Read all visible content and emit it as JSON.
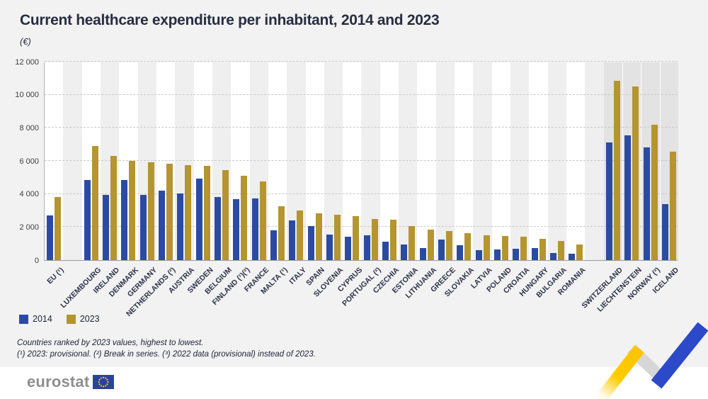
{
  "title": "Current healthcare expenditure per inhabitant, 2014 and 2023",
  "subtitle": "(€)",
  "legend": {
    "items": [
      {
        "label": "2014",
        "color": "#2b4ba3"
      },
      {
        "label": "2023",
        "color": "#b5952f"
      }
    ]
  },
  "footnotes": [
    "Countries ranked by 2023 values, highest to lowest.",
    "(¹) 2023: provisional. (²) Break in series. (³) 2022 data (provisional) instead of 2023."
  ],
  "logo": {
    "text": "eurostat"
  },
  "chart_data": {
    "type": "bar",
    "title": "Current healthcare expenditure per inhabitant, 2014 and 2023",
    "xlabel": "",
    "ylabel": "(€)",
    "ylim": [
      0,
      12000
    ],
    "ytick_step": 2000,
    "ytick_labels": [
      "0",
      "2 000",
      "4 000",
      "6 000",
      "8 000",
      "10 000",
      "12 000"
    ],
    "grid": "horizontal-dashed",
    "legend_position": "bottom-left",
    "layout_note": "gap after EU aggregate; EFTA group separated by gap and shaded darker",
    "categories": [
      {
        "label": "EU (¹)",
        "group": "eu-aggregate"
      },
      {
        "label": "LUXEMBOURG",
        "group": "eu"
      },
      {
        "label": "IRELAND",
        "group": "eu"
      },
      {
        "label": "DENMARK",
        "group": "eu"
      },
      {
        "label": "GERMANY",
        "group": "eu"
      },
      {
        "label": "NETHERLANDS (²)",
        "group": "eu"
      },
      {
        "label": "AUSTRIA",
        "group": "eu"
      },
      {
        "label": "SWEDEN",
        "group": "eu"
      },
      {
        "label": "BELGIUM",
        "group": "eu"
      },
      {
        "label": "FINLAND (¹)(²)",
        "group": "eu"
      },
      {
        "label": "FRANCE",
        "group": "eu"
      },
      {
        "label": "MALTA (¹)",
        "group": "eu"
      },
      {
        "label": "ITALY",
        "group": "eu"
      },
      {
        "label": "SPAIN",
        "group": "eu"
      },
      {
        "label": "SLOVENIA",
        "group": "eu"
      },
      {
        "label": "CYPRUS",
        "group": "eu"
      },
      {
        "label": "PORTUGAL (²)",
        "group": "eu"
      },
      {
        "label": "CZECHIA",
        "group": "eu"
      },
      {
        "label": "ESTONIA",
        "group": "eu"
      },
      {
        "label": "LITHUANIA",
        "group": "eu"
      },
      {
        "label": "GREECE",
        "group": "eu"
      },
      {
        "label": "SLOVAKIA",
        "group": "eu"
      },
      {
        "label": "LATVIA",
        "group": "eu"
      },
      {
        "label": "POLAND",
        "group": "eu"
      },
      {
        "label": "CROATIA",
        "group": "eu"
      },
      {
        "label": "HUNGARY",
        "group": "eu"
      },
      {
        "label": "BULGARIA",
        "group": "eu"
      },
      {
        "label": "ROMANIA",
        "group": "eu"
      },
      {
        "label": "SWITZERLAND",
        "group": "efta"
      },
      {
        "label": "LIECHTENSTEIN",
        "group": "efta"
      },
      {
        "label": "NORWAY (³)",
        "group": "efta"
      },
      {
        "label": "ICELAND",
        "group": "efta"
      }
    ],
    "series": [
      {
        "name": "2014",
        "color": "#2b4ba3",
        "values": [
          2700,
          4850,
          3950,
          4850,
          3950,
          4200,
          4050,
          4950,
          3800,
          3700,
          3750,
          1800,
          2400,
          2050,
          1550,
          1400,
          1500,
          1100,
          950,
          750,
          1250,
          900,
          600,
          650,
          700,
          750,
          450,
          370,
          7100,
          7550,
          6800,
          3400
        ]
      },
      {
        "name": "2023",
        "color": "#b5952f",
        "values": [
          3800,
          6900,
          6300,
          6000,
          5900,
          5850,
          5750,
          5700,
          5450,
          5100,
          4750,
          3250,
          3000,
          2850,
          2750,
          2650,
          2500,
          2450,
          2050,
          1850,
          1750,
          1650,
          1500,
          1450,
          1400,
          1300,
          1150,
          950,
          10850,
          10500,
          8200,
          6550
        ]
      }
    ],
    "colors": {
      "band_light": "#ffffff",
      "band_dark": "#efefef",
      "efta_band": "#e3e3e3",
      "gridline": "#c9c9c9"
    }
  }
}
